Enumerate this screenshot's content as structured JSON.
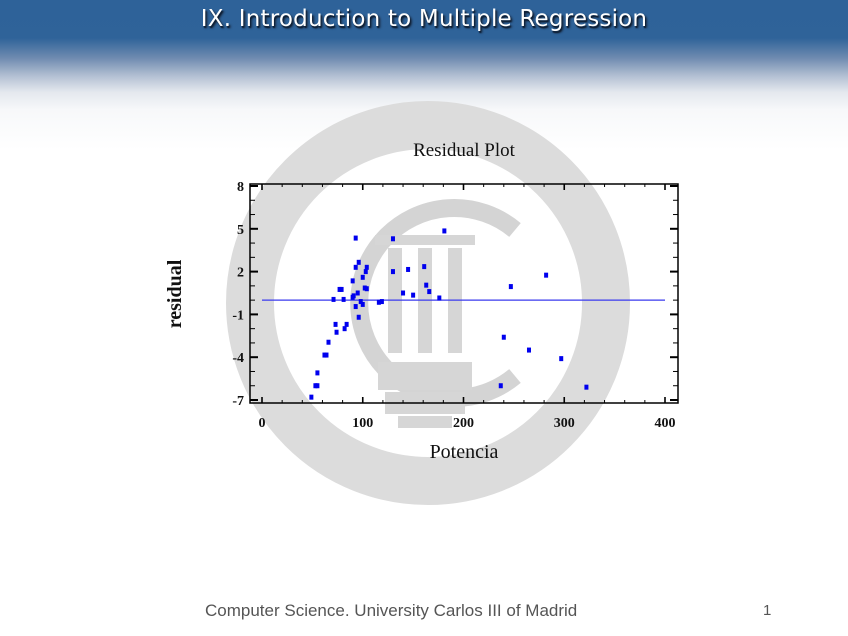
{
  "slide": {
    "title": "IX. Introduction to Multiple Regression",
    "footer": "Computer Science. University Carlos III of Madrid",
    "page_number": "1",
    "watermark": "university-seal"
  },
  "colors": {
    "header_blue": "#2f6399",
    "point_color": "#0000ee",
    "zero_line": "#3a3aee",
    "axis": "#000000",
    "watermark_grey": "#d8d8d8"
  },
  "chart_data": {
    "type": "scatter",
    "title": "Residual Plot",
    "xlabel": "Potencia",
    "ylabel": "residual",
    "xlim": [
      0,
      400
    ],
    "ylim": [
      -7,
      8
    ],
    "x_ticks": [
      0,
      100,
      200,
      300,
      400
    ],
    "x_tick_labels": [
      "0",
      "100",
      "200",
      "300",
      "400"
    ],
    "y_ticks": [
      8,
      5,
      2,
      -1,
      -4,
      -7
    ],
    "y_tick_labels": [
      "8",
      "5",
      "2",
      "-1",
      "-4",
      "-7"
    ],
    "x_minor_step": 20,
    "y_minor_step": 1,
    "grid": false,
    "legend": null,
    "reference_line": {
      "y": 0,
      "x_from": 0,
      "x_to": 400
    },
    "points": [
      {
        "x": 49,
        "y": -6.8
      },
      {
        "x": 53,
        "y": -6.0
      },
      {
        "x": 55,
        "y": -6.0
      },
      {
        "x": 55,
        "y": -5.1
      },
      {
        "x": 62,
        "y": -3.85
      },
      {
        "x": 64,
        "y": -3.85
      },
      {
        "x": 66,
        "y": -2.95
      },
      {
        "x": 71,
        "y": 0.05
      },
      {
        "x": 73,
        "y": -1.7
      },
      {
        "x": 74,
        "y": -2.25
      },
      {
        "x": 77,
        "y": 0.75
      },
      {
        "x": 79,
        "y": 0.75
      },
      {
        "x": 81,
        "y": 0.05
      },
      {
        "x": 82,
        "y": -2.0
      },
      {
        "x": 84,
        "y": -1.7
      },
      {
        "x": 90,
        "y": 1.35
      },
      {
        "x": 90,
        "y": 0.2
      },
      {
        "x": 91,
        "y": 0.3
      },
      {
        "x": 93,
        "y": 4.35
      },
      {
        "x": 93,
        "y": 2.3
      },
      {
        "x": 93,
        "y": -0.45
      },
      {
        "x": 95,
        "y": 0.5
      },
      {
        "x": 96,
        "y": 2.65
      },
      {
        "x": 96,
        "y": -1.2
      },
      {
        "x": 98,
        "y": -0.1
      },
      {
        "x": 100,
        "y": 1.6
      },
      {
        "x": 100,
        "y": -0.3
      },
      {
        "x": 102,
        "y": 0.85
      },
      {
        "x": 103,
        "y": 2.0
      },
      {
        "x": 104,
        "y": 2.3
      },
      {
        "x": 104,
        "y": 0.8
      },
      {
        "x": 116,
        "y": -0.15
      },
      {
        "x": 119,
        "y": -0.1
      },
      {
        "x": 130,
        "y": 4.3
      },
      {
        "x": 130,
        "y": 2.0
      },
      {
        "x": 140,
        "y": 0.5
      },
      {
        "x": 145,
        "y": 2.15
      },
      {
        "x": 150,
        "y": 0.35
      },
      {
        "x": 161,
        "y": 2.35
      },
      {
        "x": 163,
        "y": 1.05
      },
      {
        "x": 166,
        "y": 0.6
      },
      {
        "x": 176,
        "y": 0.15
      },
      {
        "x": 181,
        "y": 4.85
      },
      {
        "x": 237,
        "y": -6.0
      },
      {
        "x": 240,
        "y": -2.6
      },
      {
        "x": 247,
        "y": 0.95
      },
      {
        "x": 265,
        "y": -3.5
      },
      {
        "x": 282,
        "y": 1.75
      },
      {
        "x": 297,
        "y": -4.1
      },
      {
        "x": 322,
        "y": -6.1
      }
    ]
  }
}
